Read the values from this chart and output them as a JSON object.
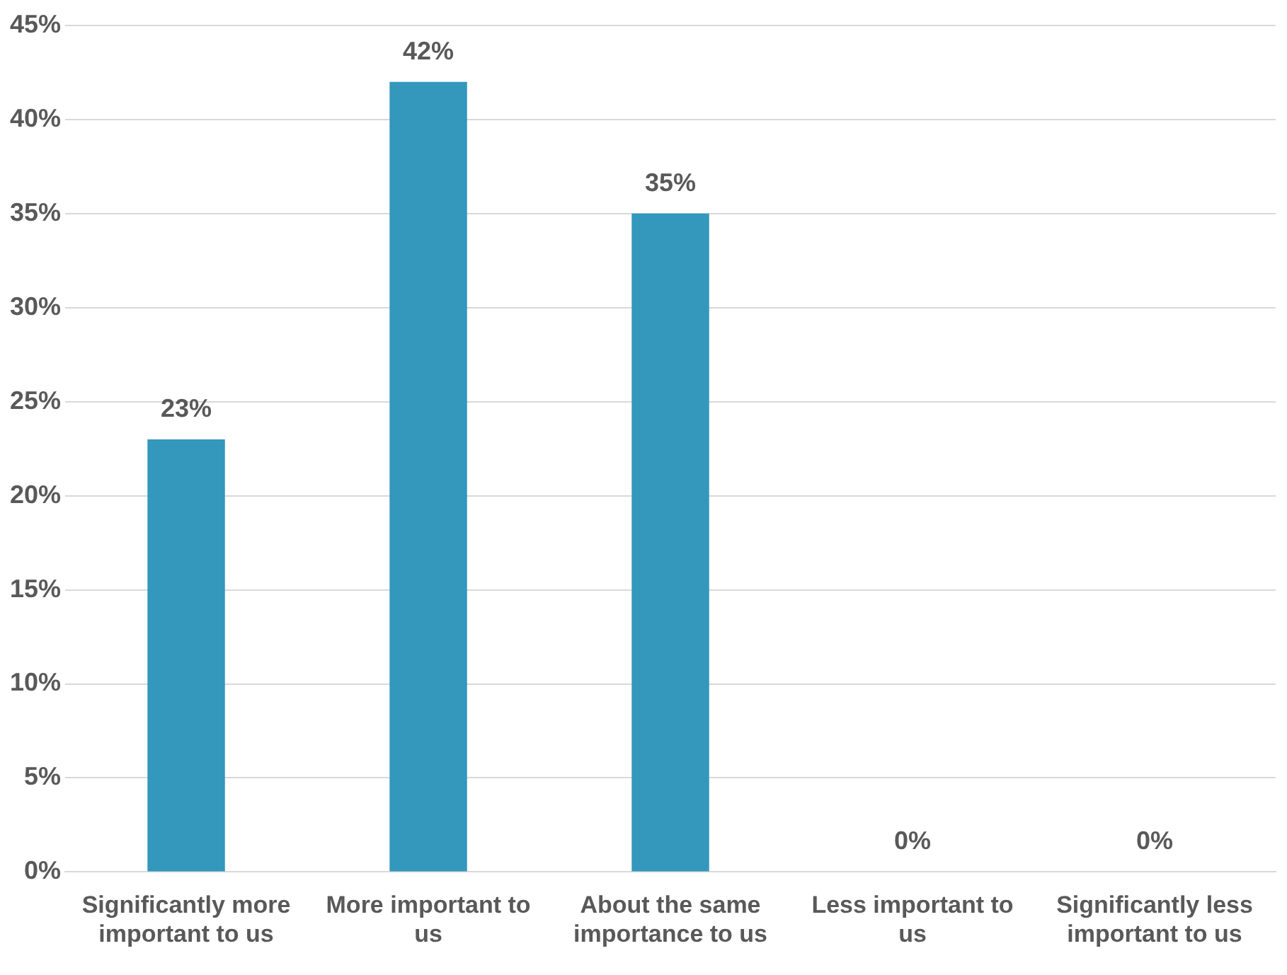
{
  "chart_data": {
    "type": "bar",
    "categories": [
      "Significantly more important to us",
      "More important to us",
      "About the same importance to us",
      "Less important to us",
      "Significantly less important to us"
    ],
    "values": [
      23,
      42,
      35,
      0,
      0
    ],
    "color": "#3497bc",
    "value_labels": [
      "23%",
      "42%",
      "35%",
      "0%",
      "0%"
    ],
    "ylim": [
      0,
      45
    ],
    "yticks": [
      {
        "value": 0,
        "label": "0%"
      },
      {
        "value": 5,
        "label": "5%"
      },
      {
        "value": 10,
        "label": "10%"
      },
      {
        "value": 15,
        "label": "15%"
      },
      {
        "value": 20,
        "label": "20%"
      },
      {
        "value": 25,
        "label": "25%"
      },
      {
        "value": 30,
        "label": "30%"
      },
      {
        "value": 35,
        "label": "35%"
      },
      {
        "value": 40,
        "label": "40%"
      },
      {
        "value": 45,
        "label": "45%"
      }
    ],
    "grid": "y",
    "legend": false
  }
}
